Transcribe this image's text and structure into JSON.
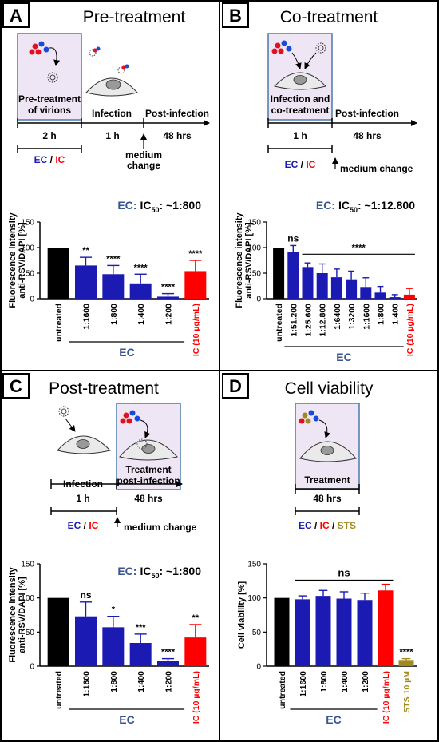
{
  "colors": {
    "ec": "#1b1bb3",
    "ic": "#ff0000",
    "sts": "#a08a20",
    "untreated": "#000000",
    "ic50": "#3a5590",
    "box_fill": "#efe6f5",
    "box_stroke": "#4a78a8"
  },
  "panels": {
    "A": {
      "letter": "A",
      "title": "Pre-treatment",
      "box_lines": [
        "Pre-treatment",
        "of virions"
      ],
      "infection": "Infection",
      "post": "Post-infection",
      "t1": "2 h",
      "t2": "1 h",
      "t3": "48 hrs",
      "medium": [
        "medium",
        "change"
      ],
      "ec": "EC",
      "sep": " / ",
      "ic": "IC",
      "ic50_prefix": "EC:",
      "ic50_label": "IC",
      "ic50_sub": "50",
      "ic50_value": ": ~1:800"
    },
    "B": {
      "letter": "B",
      "title": "Co-treatment",
      "box_lines": [
        "Infection and",
        "co-treatment"
      ],
      "post": "Post-infection",
      "t1": "1 h",
      "t2": "48 hrs",
      "medium": "medium change",
      "ec": "EC",
      "sep": " / ",
      "ic": "IC",
      "ic50_prefix": "EC:",
      "ic50_label": "IC",
      "ic50_sub": "50",
      "ic50_value": ": ~1:12.800"
    },
    "C": {
      "letter": "C",
      "title": "Post-treatment",
      "box_lines": [
        "Treatment",
        "post-infection"
      ],
      "infection": "Infection",
      "t1": "1 h",
      "t2": "48 hrs",
      "medium": "medium change",
      "ec": "EC",
      "sep": " / ",
      "ic": "IC",
      "ic50_prefix": "EC:",
      "ic50_label": "IC",
      "ic50_sub": "50",
      "ic50_value": ": ~1:800"
    },
    "D": {
      "letter": "D",
      "title": "Cell viability",
      "box_lines": [
        "Treatment"
      ],
      "t1": "48 hrs",
      "ec": "EC",
      "sep": " / ",
      "ic": "IC",
      "sts": "STS"
    }
  },
  "chart_data": [
    {
      "panel": "A",
      "type": "bar",
      "ylabel": "Fluorescence intensity anti-RSV/DAPI [%]",
      "ylim": [
        0,
        150
      ],
      "yticks": [
        0,
        50,
        100,
        150
      ],
      "group_label": "EC",
      "categories": [
        "untreated",
        "1:1600",
        "1:800",
        "1:400",
        "1:200",
        "IC (10 µg/mL)"
      ],
      "values": [
        100,
        65,
        48,
        30,
        4,
        54
      ],
      "errors": [
        0,
        16,
        17,
        18,
        6,
        21
      ],
      "significance": [
        "",
        "**",
        "****",
        "****",
        "****",
        "****"
      ],
      "colors": [
        "untreated",
        "ec",
        "ec",
        "ec",
        "ec",
        "ic"
      ]
    },
    {
      "panel": "B",
      "type": "bar",
      "ylabel": "Fluorescence intensity anti-RSV/DAPI [%]",
      "ylim": [
        0,
        150
      ],
      "yticks": [
        0,
        50,
        100,
        150
      ],
      "group_label": "EC",
      "categories": [
        "untreated",
        "1:51.200",
        "1:25.600",
        "1:12.800",
        "1:6400",
        "1:3200",
        "1:1600",
        "1:800",
        "1:400",
        "IC (10 µg/mL)"
      ],
      "values": [
        100,
        92,
        62,
        50,
        42,
        38,
        23,
        12,
        3,
        8
      ],
      "errors": [
        0,
        12,
        8,
        18,
        16,
        16,
        18,
        12,
        5,
        12
      ],
      "significance": [
        "",
        "ns",
        "",
        "",
        "",
        "",
        "",
        "",
        "",
        ""
      ],
      "bracket_label": "****",
      "colors": [
        "untreated",
        "ec",
        "ec",
        "ec",
        "ec",
        "ec",
        "ec",
        "ec",
        "ec",
        "ic"
      ]
    },
    {
      "panel": "C",
      "type": "bar",
      "ylabel": "Fluorescence intensity anti-RSV/DAPI [%]",
      "ylim": [
        0,
        150
      ],
      "yticks": [
        0,
        50,
        100,
        150
      ],
      "group_label": "EC",
      "categories": [
        "untreated",
        "1:1600",
        "1:800",
        "1:400",
        "1:200",
        "IC (10 µg/mL)"
      ],
      "values": [
        100,
        73,
        57,
        34,
        8,
        42
      ],
      "errors": [
        0,
        21,
        16,
        13,
        3,
        19
      ],
      "significance": [
        "",
        "ns",
        "*",
        "***",
        "****",
        "**"
      ],
      "colors": [
        "untreated",
        "ec",
        "ec",
        "ec",
        "ec",
        "ic"
      ]
    },
    {
      "panel": "D",
      "type": "bar",
      "ylabel": "Cell viability [%]",
      "ylim": [
        0,
        150
      ],
      "yticks": [
        0,
        50,
        100,
        150
      ],
      "group_label": "EC",
      "categories": [
        "untreated",
        "1:1600",
        "1:800",
        "1:400",
        "1:200",
        "IC (10 µg/mL)",
        "STS 10 µM"
      ],
      "values": [
        100,
        98,
        103,
        99,
        97,
        111,
        9
      ],
      "errors": [
        0,
        5,
        8,
        10,
        10,
        9,
        2
      ],
      "significance": [
        "",
        "",
        "",
        "",
        "",
        "",
        "****"
      ],
      "bracket_label": "ns",
      "colors": [
        "untreated",
        "ec",
        "ec",
        "ec",
        "ec",
        "ic",
        "sts"
      ]
    }
  ]
}
